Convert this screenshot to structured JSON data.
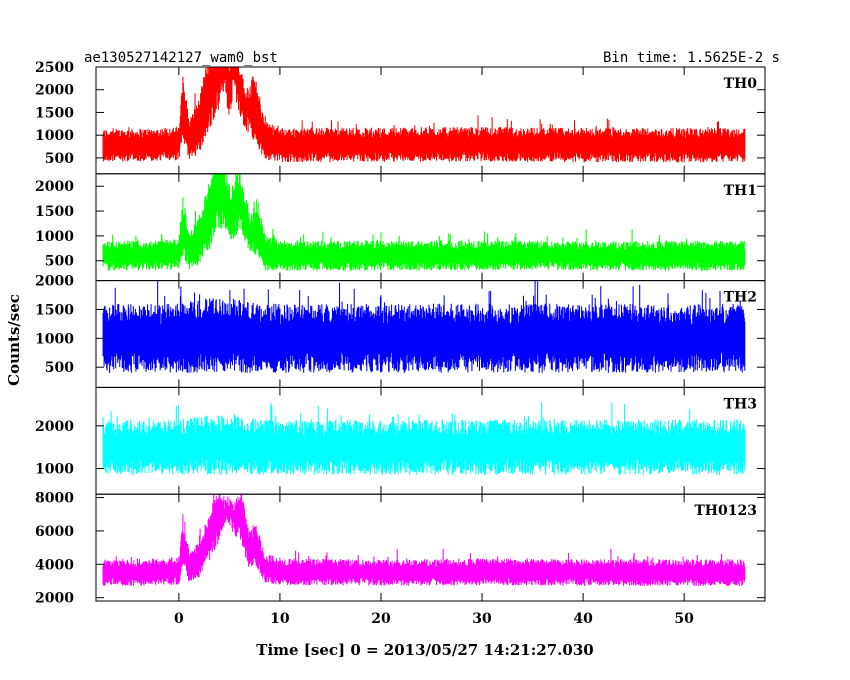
{
  "chart_data": {
    "type": "line",
    "title": "ae130527142127_wam0_bst",
    "subtitle": "Bin time: 1.5625E-2 s",
    "xlabel": "Time [sec] 0 = 2013/05/27 14:21:27.030",
    "ylabel": "Counts/sec",
    "xlim": [
      -8.2,
      58
    ],
    "x_ticks": [
      0,
      10,
      20,
      30,
      40,
      50
    ],
    "grid": false,
    "panels": [
      {
        "name": "TH0",
        "color": "#ff0000",
        "ylim": [
          150,
          2500
        ],
        "y_ticks": [
          500,
          1000,
          1500,
          2000,
          2500
        ],
        "x": [
          -7.5,
          -5,
          -2,
          0,
          0.4,
          1,
          2,
          3,
          3.7,
          4.5,
          5,
          5.5,
          6.5,
          7.5,
          8.5,
          10,
          20,
          30,
          40,
          50,
          56
        ],
        "y": [
          780,
          780,
          800,
          820,
          1600,
          900,
          1200,
          2000,
          2500,
          2400,
          1900,
          2400,
          1400,
          1600,
          900,
          780,
          790,
          800,
          780,
          780,
          780
        ],
        "noise": [
          360,
          360,
          360,
          380,
          700,
          450,
          600,
          900,
          1100,
          1100,
          950,
          1100,
          650,
          750,
          450,
          380,
          380,
          380,
          380,
          380,
          380
        ],
        "lowgap": [
          0,
          0,
          0,
          0,
          0,
          0,
          0,
          0,
          0,
          500,
          400,
          500,
          380,
          0,
          0,
          0,
          0,
          0,
          0,
          0,
          0
        ]
      },
      {
        "name": "TH1",
        "color": "#00ff00",
        "ylim": [
          100,
          2250
        ],
        "y_ticks": [
          500,
          1000,
          1500,
          2000
        ],
        "x": [
          -7.5,
          -5,
          -2,
          0,
          0.4,
          1,
          2,
          3,
          3.8,
          4.6,
          5.2,
          6,
          7,
          7.7,
          8.5,
          10,
          20,
          30,
          40,
          50,
          56
        ],
        "y": [
          600,
          600,
          610,
          630,
          1200,
          700,
          900,
          1400,
          1800,
          1650,
          1300,
          1600,
          950,
          1200,
          680,
          600,
          600,
          610,
          600,
          600,
          600
        ],
        "noise": [
          300,
          300,
          300,
          320,
          650,
          380,
          480,
          700,
          850,
          800,
          700,
          800,
          520,
          620,
          380,
          300,
          300,
          300,
          300,
          300,
          300
        ],
        "lowgap": [
          0,
          0,
          0,
          0,
          0,
          0,
          0,
          0,
          200,
          280,
          250,
          300,
          260,
          0,
          0,
          0,
          0,
          0,
          0,
          0,
          0
        ]
      },
      {
        "name": "TH2",
        "color": "#0000ff",
        "ylim": [
          150,
          2000
        ],
        "y_ticks": [
          500,
          1000,
          1500,
          2000
        ],
        "x": [
          -7.5,
          0,
          3,
          5,
          8,
          20,
          40,
          56
        ],
        "y": [
          1000,
          1000,
          1050,
          1050,
          1000,
          1000,
          1000,
          1000
        ],
        "noise": [
          600,
          600,
          650,
          650,
          600,
          600,
          600,
          600
        ],
        "lowgap": [
          0,
          0,
          0,
          0,
          0,
          0,
          0,
          0
        ]
      },
      {
        "name": "TH3",
        "color": "#00ffff",
        "ylim": [
          400,
          2900
        ],
        "y_ticks": [
          1000,
          2000
        ],
        "x": [
          -7.5,
          0,
          3,
          5,
          8,
          20,
          40,
          56
        ],
        "y": [
          1500,
          1500,
          1550,
          1550,
          1500,
          1500,
          1500,
          1500
        ],
        "noise": [
          650,
          650,
          700,
          700,
          650,
          650,
          650,
          650
        ],
        "lowgap": [
          0,
          0,
          0,
          0,
          0,
          0,
          0,
          0
        ]
      },
      {
        "name": "TH0123",
        "color": "#ff00ff",
        "ylim": [
          1800,
          8200
        ],
        "y_ticks": [
          2000,
          4000,
          6000,
          8000
        ],
        "x": [
          -7.5,
          -5,
          -2,
          0,
          0.4,
          1,
          2,
          3,
          3.8,
          4.6,
          5.5,
          6.2,
          7,
          7.6,
          8.5,
          10,
          20,
          30,
          40,
          50,
          56
        ],
        "y": [
          3500,
          3500,
          3550,
          3600,
          5200,
          3900,
          4300,
          5600,
          6800,
          6600,
          6200,
          6700,
          4800,
          5300,
          3800,
          3550,
          3500,
          3550,
          3500,
          3500,
          3500
        ],
        "noise": [
          800,
          800,
          800,
          850,
          1400,
          950,
          1100,
          1500,
          1700,
          1650,
          1600,
          1700,
          1200,
          1350,
          900,
          800,
          800,
          800,
          800,
          800,
          800
        ],
        "lowgap": [
          0,
          0,
          0,
          0,
          0,
          0,
          0,
          0,
          0,
          1400,
          1200,
          0,
          0,
          0,
          0,
          0,
          0,
          0,
          0,
          0,
          0
        ]
      }
    ]
  }
}
